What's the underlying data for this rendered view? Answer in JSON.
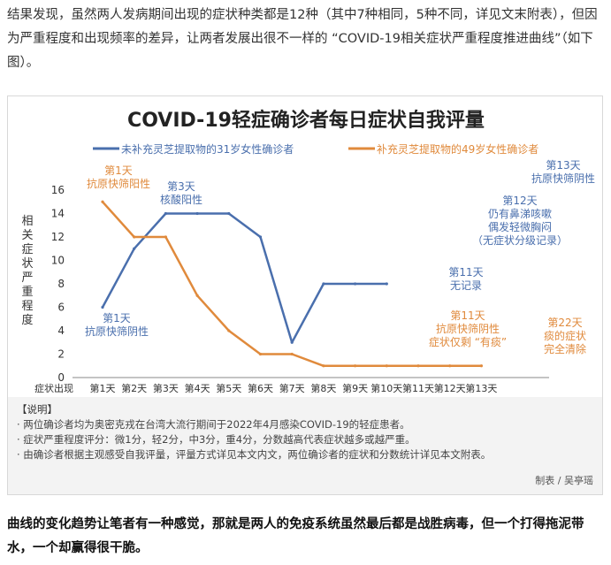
{
  "article": {
    "intro": "结果发现，虽然两人发病期间出现的症状种类都是12种（其中7种相同，5种不同，详见文末附表），但因为严重程度和出现频率的差异，让两者发展出很不一样的 “COVID-19相关症状严重程度推进曲线”（如下图）。",
    "outro": "曲线的变化趋势让笔者有一种感觉，那就是两人的免疫系统虽然最后都是战胜病毒，但一个打得拖泥带水，一个却赢得很干脆。"
  },
  "chart_data": {
    "type": "line",
    "title": "COVID-19轻症确诊者每日症状自我评量",
    "ylabel": "相关症状严重程度",
    "xlabel": "症状出现",
    "categories": [
      "第1天",
      "第2天",
      "第3天",
      "第4天",
      "第5天",
      "第6天",
      "第7天",
      "第8天",
      "第9天",
      "第10天",
      "第11天",
      "第12天",
      "第13天"
    ],
    "yticks": [
      "0",
      "2",
      "4",
      "6",
      "8",
      "10",
      "12",
      "14",
      "16"
    ],
    "ylim": [
      0,
      16
    ],
    "grid": false,
    "legend_position": "top",
    "series": [
      {
        "name": "未补充灵芝提取物的31岁女性确诊者",
        "color": "#4a6fad",
        "x": [
          1,
          2,
          3,
          4,
          5,
          6,
          7,
          8,
          9,
          10
        ],
        "values": [
          6,
          11,
          14,
          14,
          14,
          12,
          3,
          8,
          8,
          8
        ]
      },
      {
        "name": "补充灵芝提取物的49岁女性确诊者",
        "color": "#e08a3c",
        "x": [
          1,
          2,
          3,
          4,
          5,
          6,
          7,
          8,
          9,
          10,
          11,
          12,
          13
        ],
        "values": [
          15,
          12,
          12,
          7,
          4,
          2,
          2,
          1,
          1,
          1,
          1,
          1,
          1
        ]
      }
    ],
    "annotations": [
      {
        "text": "第1天\n抗原快筛阳性",
        "color": "#e08a3c"
      },
      {
        "text": "第3天\n核酸阳性",
        "color": "#4a6fad"
      },
      {
        "text": "第1天\n抗原快筛阴性",
        "color": "#4a6fad"
      },
      {
        "text": "第13天\n抗原快筛阴性",
        "color": "#4a6fad"
      },
      {
        "text": "第12天\n仍有鼻涕咳嗽\n偶发轻微胸闷\n（无症状分级记录）",
        "color": "#4a6fad"
      },
      {
        "text": "第11天\n无记录",
        "color": "#4a6fad"
      },
      {
        "text": "第11天\n抗原快筛阴性\n症状仅剩 “有痰”",
        "color": "#e08a3c"
      },
      {
        "text": "第22天\n痰的症状\n完全清除",
        "color": "#e08a3c"
      }
    ],
    "notes": {
      "heading": "【说明】",
      "items": [
        "· 两位确诊者均为奥密克戎在台湾大流行期间于2022年4月感染COVID-19的轻症患者。",
        "· 症状严重程度评分：微1分，轻2分，中3分，重4分，分数越高代表症状越多或越严重。",
        "· 由确诊者根据主观感受自我评量，评量方式详见本文内文，两位确诊者的症状和分数统计详见本文附表。"
      ]
    },
    "credit": "制表 / 吴亭瑶"
  }
}
